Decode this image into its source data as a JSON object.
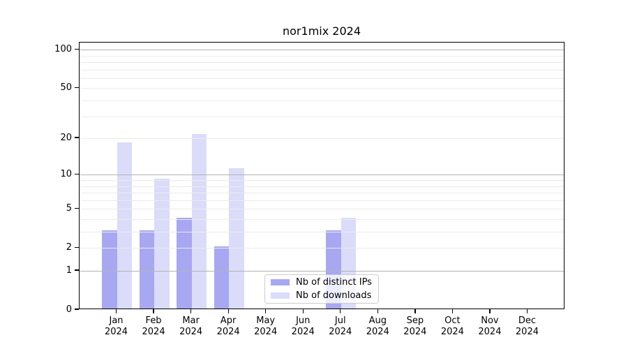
{
  "chart_data": {
    "type": "bar",
    "title": "nor1mix 2024",
    "categories": [
      "Jan",
      "Feb",
      "Mar",
      "Apr",
      "May",
      "Jun",
      "Jul",
      "Aug",
      "Sep",
      "Oct",
      "Nov",
      "Dec"
    ],
    "x_tick_year": "2024",
    "series": [
      {
        "name": "Nb of distinct IPs",
        "color": "#a7a7f2",
        "values": [
          3,
          3,
          4,
          2,
          0,
          0,
          3,
          0,
          0,
          0,
          0,
          0
        ]
      },
      {
        "name": "Nb of downloads",
        "color": "#dadcf9",
        "values": [
          18,
          9,
          21,
          11,
          0,
          0,
          4,
          0,
          0,
          0,
          0,
          0
        ]
      }
    ],
    "y_scale": "log1p",
    "y_ticks": [
      0,
      1,
      2,
      5,
      10,
      20,
      50,
      100
    ],
    "y_major_gridlines": [
      1,
      10,
      100
    ],
    "y_minor_gridlines": [
      2,
      3,
      4,
      5,
      6,
      7,
      8,
      9,
      20,
      30,
      40,
      50,
      60,
      70,
      80,
      90
    ],
    "ylim": [
      0,
      113
    ],
    "grid": true,
    "legend_position": "lower center-left inside plot",
    "colors": {
      "major_grid": "#b3b3b3",
      "minor_grid": "#ebebeb",
      "axis": "#000000",
      "legend_border": "#cccccc",
      "text": "#000000"
    }
  }
}
